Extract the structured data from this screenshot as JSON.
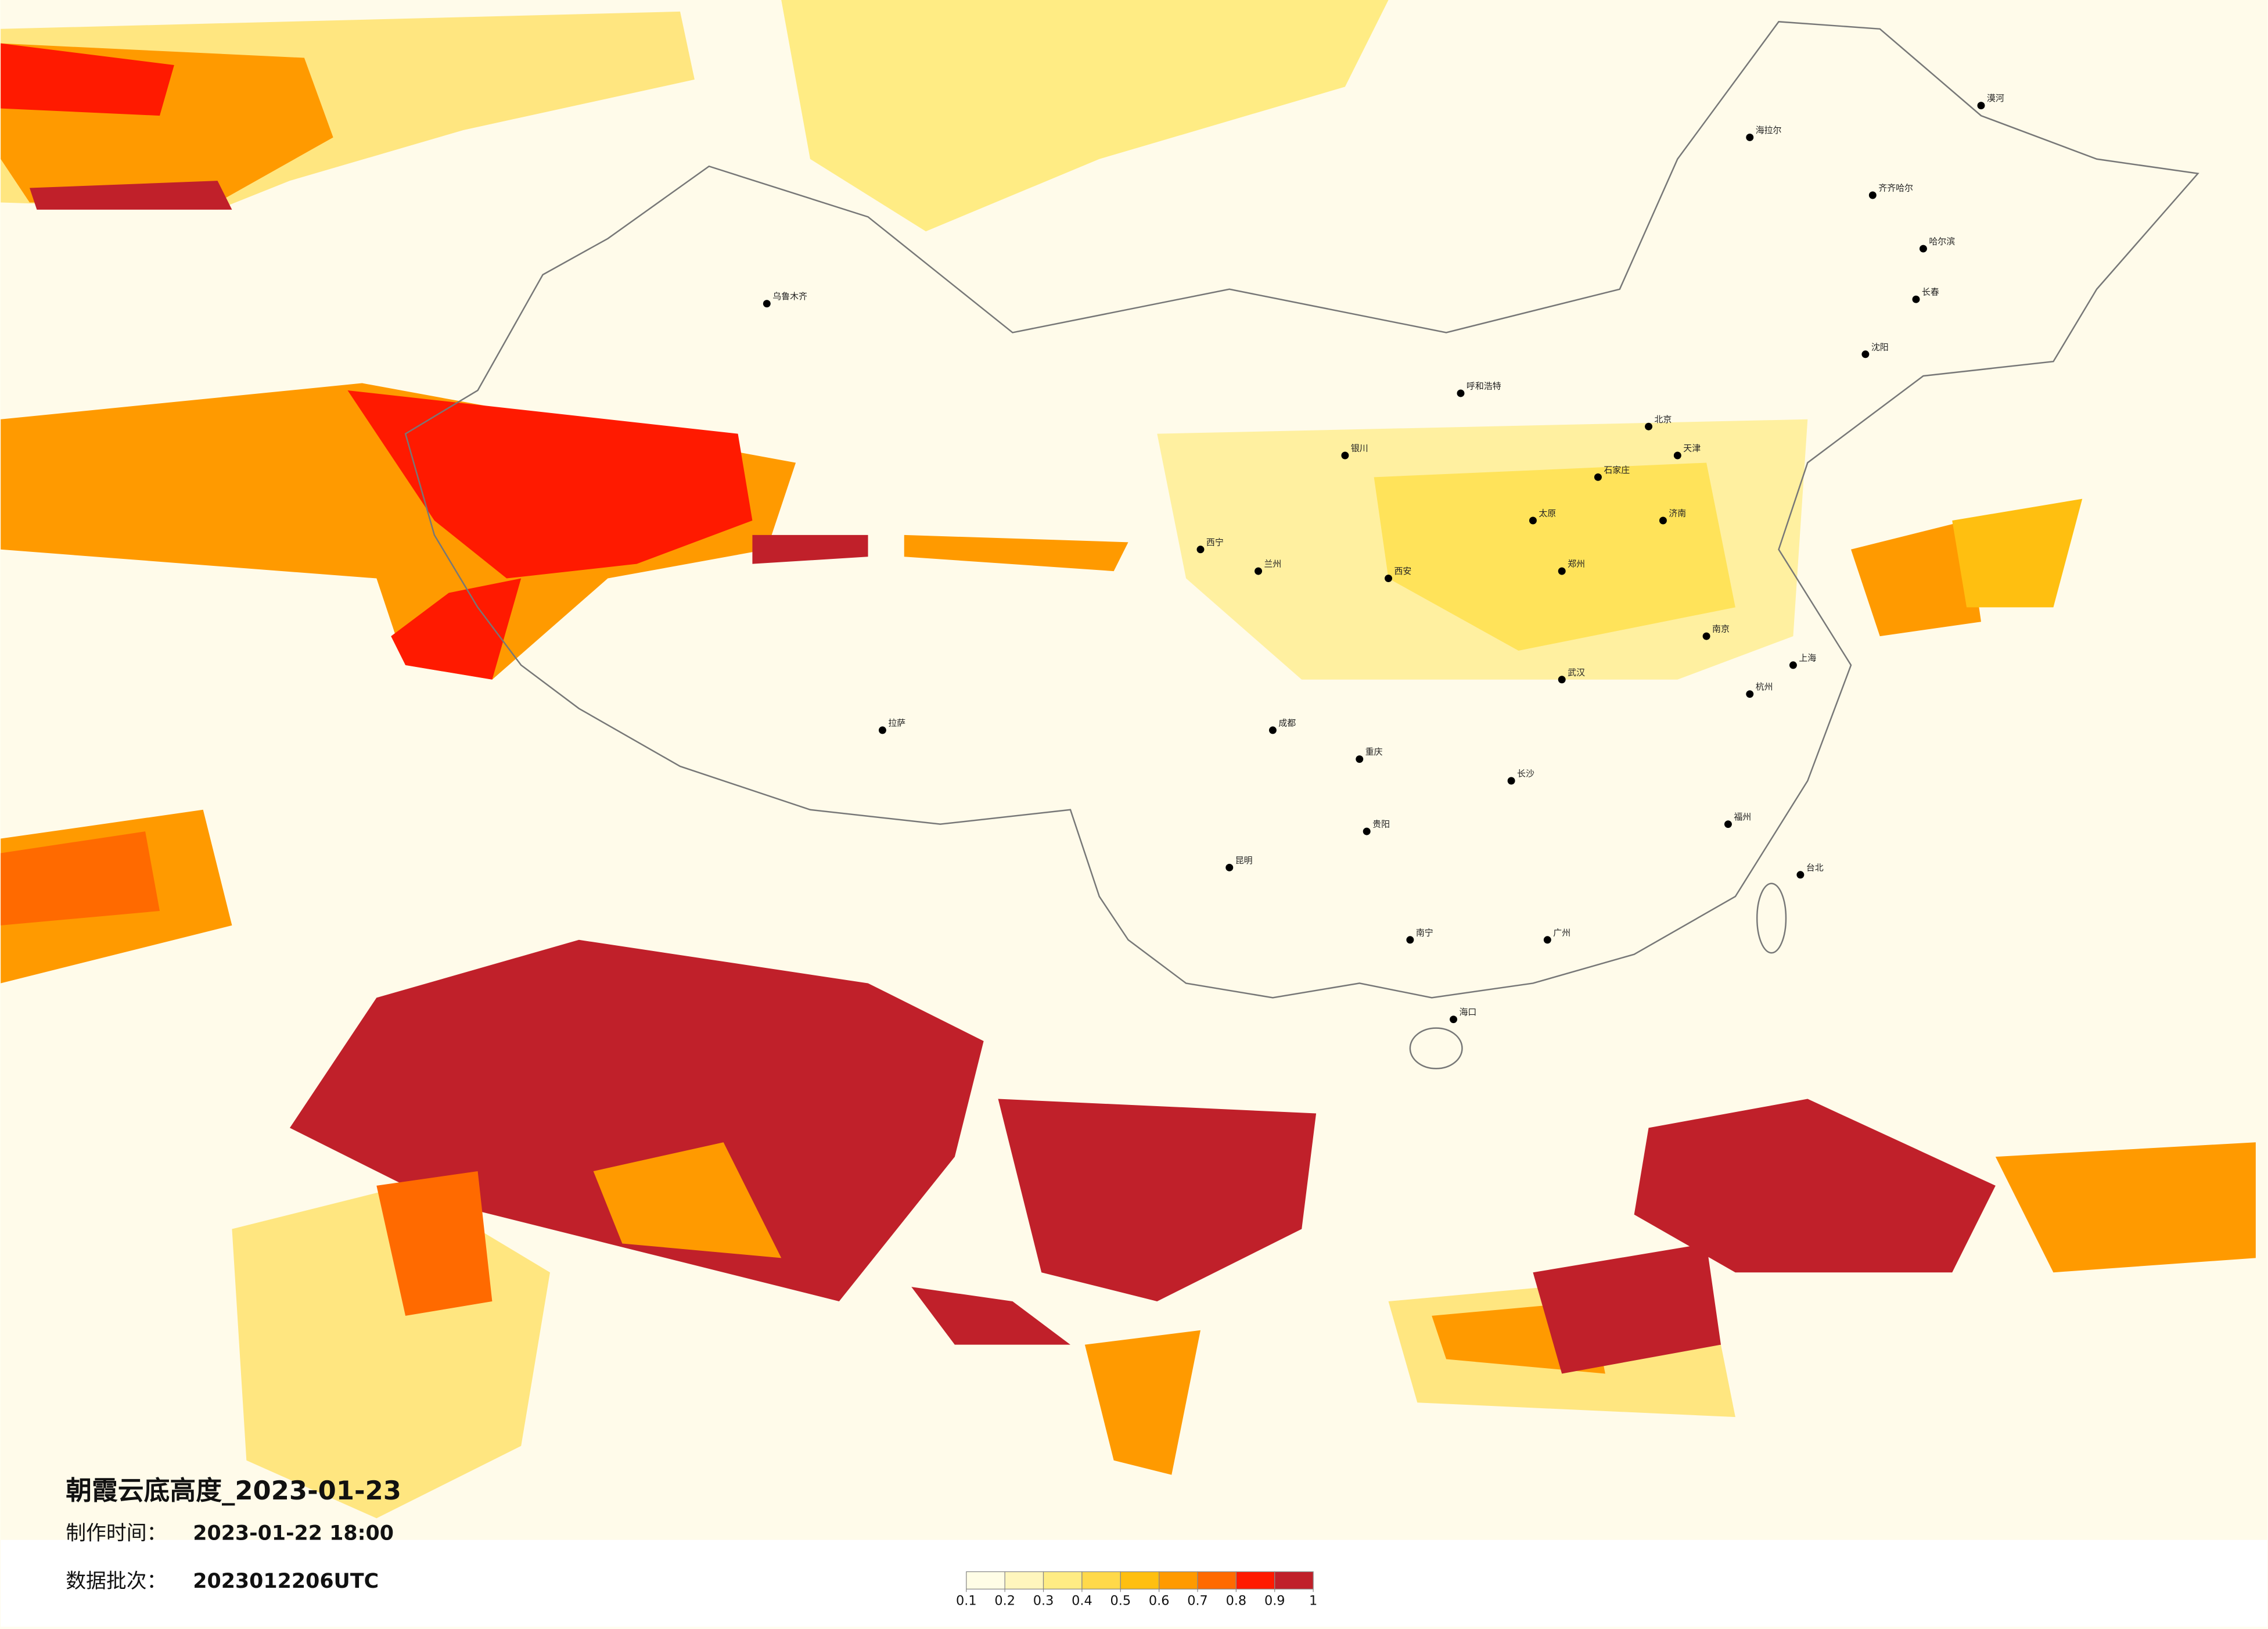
{
  "title": "朝霞云底高度_2023-01-23",
  "info": {
    "made_label": "制作时间：",
    "made_value": "2023-01-22 18:00",
    "batch_label": "数据批次：",
    "batch_value": "2023012206UTC"
  },
  "legend": {
    "ticks": [
      0.1,
      0.2,
      0.3,
      0.4,
      0.5,
      0.6,
      0.7,
      0.8,
      0.9,
      1
    ],
    "colors": [
      "#fffde6",
      "#fff6bd",
      "#ffec84",
      "#ffd94a",
      "#ffbf10",
      "#ff9a00",
      "#ff6a00",
      "#ff1a00",
      "#c0202a"
    ]
  },
  "cities": [
    "漠河",
    "海拉尔",
    "齐齐哈尔",
    "哈尔滨",
    "长春",
    "沈阳",
    "北京",
    "天津",
    "石家庄",
    "太原",
    "呼和浩特",
    "银川",
    "兰州",
    "西宁",
    "乌鲁木齐",
    "拉萨",
    "成都",
    "重庆",
    "贵阳",
    "昆明",
    "南宁",
    "广州",
    "长沙",
    "武汉",
    "南京",
    "上海",
    "杭州",
    "福州",
    "台北",
    "海口",
    "郑州",
    "西安",
    "济南"
  ]
}
